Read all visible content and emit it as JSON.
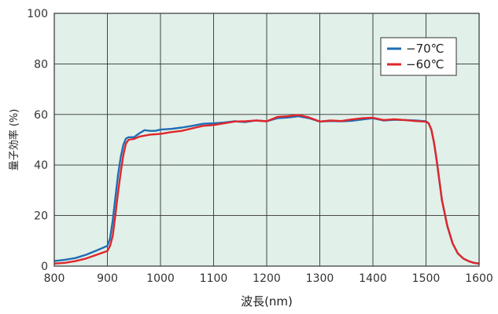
{
  "chart_data": {
    "type": "line",
    "title": "",
    "xlabel": "波長(nm)",
    "ylabel": "量子効率 (%)",
    "xlim": [
      800,
      1600
    ],
    "ylim": [
      0,
      100
    ],
    "x_ticks": [
      "800",
      "900",
      "1000",
      "1100",
      "1200",
      "1300",
      "1400",
      "1500",
      "1600"
    ],
    "y_ticks": [
      "0",
      "20",
      "40",
      "60",
      "80",
      "100"
    ],
    "grid": true,
    "plot_background": "#e1f0e9",
    "legend_position": "top-right",
    "series": [
      {
        "name": "−70℃",
        "color": "#1f6db4",
        "points": [
          [
            800,
            2
          ],
          [
            820,
            2.5
          ],
          [
            840,
            3.2
          ],
          [
            860,
            4.5
          ],
          [
            880,
            6.2
          ],
          [
            900,
            8
          ],
          [
            905,
            11
          ],
          [
            910,
            18
          ],
          [
            915,
            27
          ],
          [
            920,
            36
          ],
          [
            925,
            43
          ],
          [
            930,
            48
          ],
          [
            935,
            50.5
          ],
          [
            940,
            51
          ],
          [
            950,
            51
          ],
          [
            960,
            52.5
          ],
          [
            970,
            53.8
          ],
          [
            980,
            53.5
          ],
          [
            990,
            53.5
          ],
          [
            1000,
            54
          ],
          [
            1020,
            54.3
          ],
          [
            1040,
            54.8
          ],
          [
            1060,
            55.5
          ],
          [
            1080,
            56.3
          ],
          [
            1100,
            56.5
          ],
          [
            1120,
            56.8
          ],
          [
            1140,
            57.3
          ],
          [
            1160,
            57
          ],
          [
            1180,
            57.6
          ],
          [
            1200,
            57.3
          ],
          [
            1220,
            58.5
          ],
          [
            1240,
            58.8
          ],
          [
            1260,
            59.3
          ],
          [
            1280,
            58.5
          ],
          [
            1300,
            57.2
          ],
          [
            1320,
            57.4
          ],
          [
            1340,
            57.3
          ],
          [
            1360,
            57.5
          ],
          [
            1380,
            58
          ],
          [
            1400,
            58.5
          ],
          [
            1420,
            57.6
          ],
          [
            1440,
            57.9
          ],
          [
            1460,
            57.8
          ],
          [
            1480,
            57.6
          ],
          [
            1500,
            57.3
          ],
          [
            1505,
            56.5
          ],
          [
            1510,
            54
          ],
          [
            1515,
            49
          ],
          [
            1520,
            42
          ],
          [
            1525,
            34
          ],
          [
            1530,
            26
          ],
          [
            1540,
            16
          ],
          [
            1550,
            9
          ],
          [
            1560,
            5
          ],
          [
            1570,
            3
          ],
          [
            1580,
            2
          ],
          [
            1590,
            1.3
          ],
          [
            1600,
            1
          ]
        ]
      },
      {
        "name": "−60℃",
        "color": "#e0262b",
        "points": [
          [
            800,
            1
          ],
          [
            820,
            1.3
          ],
          [
            840,
            2
          ],
          [
            860,
            3
          ],
          [
            880,
            4.5
          ],
          [
            900,
            6
          ],
          [
            905,
            8
          ],
          [
            910,
            12
          ],
          [
            915,
            20
          ],
          [
            920,
            29
          ],
          [
            925,
            37
          ],
          [
            930,
            44
          ],
          [
            935,
            48.5
          ],
          [
            940,
            50
          ],
          [
            950,
            50.3
          ],
          [
            960,
            51.2
          ],
          [
            980,
            52
          ],
          [
            1000,
            52.3
          ],
          [
            1020,
            53
          ],
          [
            1040,
            53.5
          ],
          [
            1060,
            54.5
          ],
          [
            1080,
            55.5
          ],
          [
            1100,
            55.8
          ],
          [
            1120,
            56.5
          ],
          [
            1140,
            57.2
          ],
          [
            1160,
            57.3
          ],
          [
            1180,
            57.6
          ],
          [
            1200,
            57.3
          ],
          [
            1220,
            59
          ],
          [
            1240,
            59.3
          ],
          [
            1260,
            59.8
          ],
          [
            1280,
            58.8
          ],
          [
            1300,
            57.2
          ],
          [
            1320,
            57.6
          ],
          [
            1340,
            57.4
          ],
          [
            1360,
            58
          ],
          [
            1380,
            58.5
          ],
          [
            1400,
            58.7
          ],
          [
            1420,
            57.8
          ],
          [
            1440,
            58.1
          ],
          [
            1460,
            57.8
          ],
          [
            1480,
            57.4
          ],
          [
            1500,
            57.1
          ],
          [
            1505,
            56.5
          ],
          [
            1510,
            54
          ],
          [
            1515,
            49
          ],
          [
            1520,
            42
          ],
          [
            1525,
            34
          ],
          [
            1530,
            26
          ],
          [
            1540,
            16
          ],
          [
            1550,
            9
          ],
          [
            1560,
            5
          ],
          [
            1570,
            3
          ],
          [
            1580,
            2
          ],
          [
            1590,
            1.3
          ],
          [
            1600,
            1
          ]
        ]
      }
    ]
  }
}
